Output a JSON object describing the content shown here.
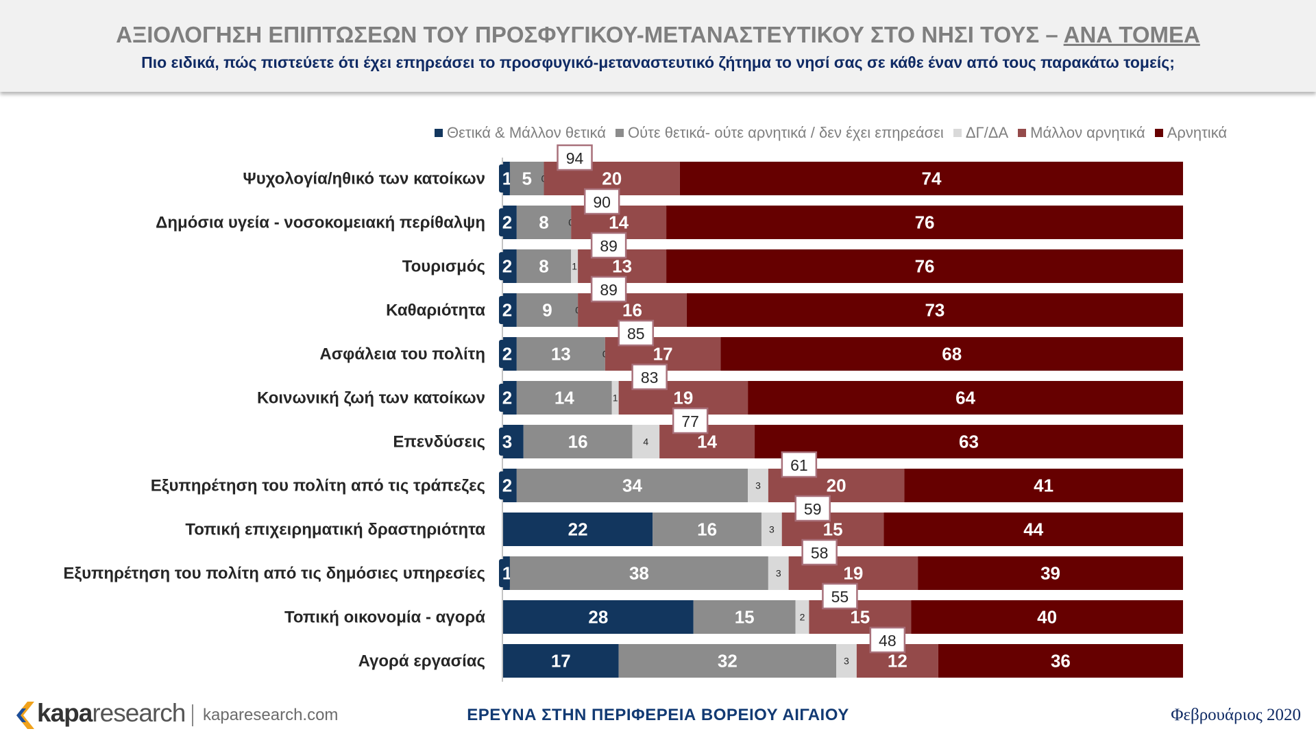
{
  "header": {
    "title_main": "ΑΞΙΟΛΟΓΗΣΗ ΕΠΙΠΤΩΣΕΩΝ ΤΟΥ ΠΡΟΣΦΥΓΙΚΟΥ-ΜΕΤΑΝΑΣΤΕΥΤΙΚΟΥ ΣΤΟ ΝΗΣΙ ΤΟΥΣ – ",
    "title_underlined": "ΑΝΑ ΤΟΜΕΑ",
    "subtitle": "Πιο ειδικά, πώς πιστεύετε ότι έχει επηρεάσει το προσφυγικό-μεταναστευτικό ζήτημα το νησί σας σε κάθε έναν από τους παρακάτω τομείς;"
  },
  "footer": {
    "logo_brand_bold": "kapa",
    "logo_brand_light": "research",
    "logo_url": "kaparesearch.com",
    "center_text": "ΕΡΕΥΝΑ ΣΤΗΝ ΠΕΡΙΦΕΡΕΙΑ ΒΟΡΕΙΟΥ ΑΙΓΑΙΟΥ",
    "date": "Φεβρουάριος 2020"
  },
  "chart_data": {
    "type": "bar",
    "orientation": "horizontal",
    "stacked": true,
    "legend_position": "top-right",
    "categories": [
      "Ψυχολογία/ηθικό των κατοίκων",
      "Δημόσια υγεία - νοσοκομειακή περίθαλψη",
      "Τουρισμός",
      "Καθαριότητα",
      "Ασφάλεια του πολίτη",
      "Κοινωνική ζωή των κατοίκων",
      "Επενδύσεις",
      "Εξυπηρέτηση του πολίτη από τις τράπεζες",
      "Τοπική επιχειρηματική δραστηριότητα",
      "Εξυπηρέτηση του πολίτη από τις δημόσιες υπηρεσίες",
      "Τοπική οικονομία - αγορά",
      "Αγορά εργασίας"
    ],
    "series": [
      {
        "name": "Θετικά & Μάλλον θετικά",
        "color": "#12365e",
        "values": [
          1,
          2,
          2,
          2,
          2,
          2,
          3,
          2,
          22,
          1,
          28,
          17
        ]
      },
      {
        "name": "Ούτε θετικά- ούτε αρνητικά / δεν έχει επηρεάσει",
        "color": "#8c8c8c",
        "values": [
          5,
          8,
          8,
          9,
          13,
          14,
          16,
          34,
          16,
          38,
          15,
          32
        ]
      },
      {
        "name": "ΔΓ/ΔΑ",
        "color": "#d9d9d9",
        "values": [
          0,
          0,
          1,
          0,
          0,
          1,
          4,
          3,
          3,
          3,
          2,
          3
        ]
      },
      {
        "name": "Μάλλον αρνητικά",
        "color": "#944a4a",
        "values": [
          20,
          14,
          13,
          16,
          17,
          19,
          14,
          20,
          15,
          19,
          15,
          12
        ]
      },
      {
        "name": "Αρνητικά",
        "color": "#660000",
        "values": [
          74,
          76,
          76,
          73,
          68,
          64,
          63,
          41,
          44,
          39,
          40,
          36
        ]
      }
    ],
    "negative_totals": [
      94,
      90,
      89,
      89,
      85,
      83,
      77,
      61,
      59,
      58,
      55,
      48
    ],
    "xlim": [
      0,
      100
    ]
  }
}
